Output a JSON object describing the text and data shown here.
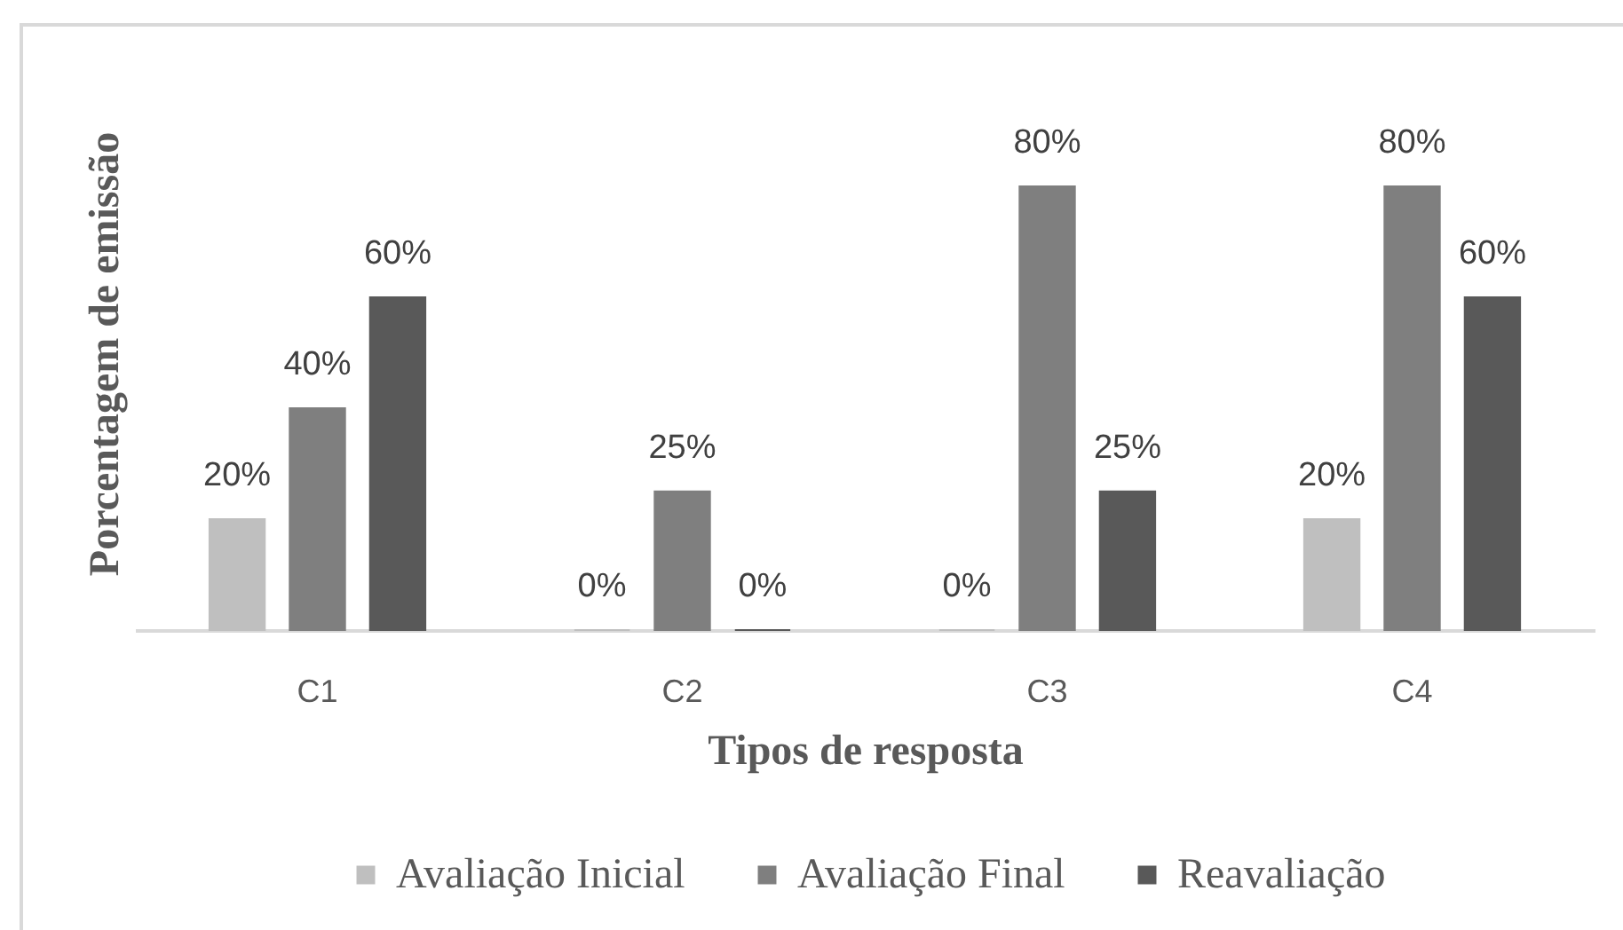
{
  "chart_data": {
    "type": "bar",
    "xlabel": "Tipos de resposta",
    "ylabel": "Porcentagem de emissão",
    "categories": [
      "C1",
      "C2",
      "C3",
      "C4"
    ],
    "series": [
      {
        "name": "Avaliação Inicial",
        "color": "#bfbfbf",
        "values": [
          20,
          0,
          0,
          20
        ],
        "value_labels": [
          "20%",
          "0%",
          "0%",
          "20%"
        ]
      },
      {
        "name": "Avaliação Final",
        "color": "#7f7f7f",
        "values": [
          40,
          25,
          80,
          80
        ],
        "value_labels": [
          "40%",
          "25%",
          "80%",
          "80%"
        ]
      },
      {
        "name": "Reavaliação",
        "color": "#595959",
        "values": [
          60,
          0,
          25,
          60
        ],
        "value_labels": [
          "60%",
          "0%",
          "25%",
          "60%"
        ]
      }
    ],
    "legend": "bottom",
    "tick_labels": "x"
  }
}
